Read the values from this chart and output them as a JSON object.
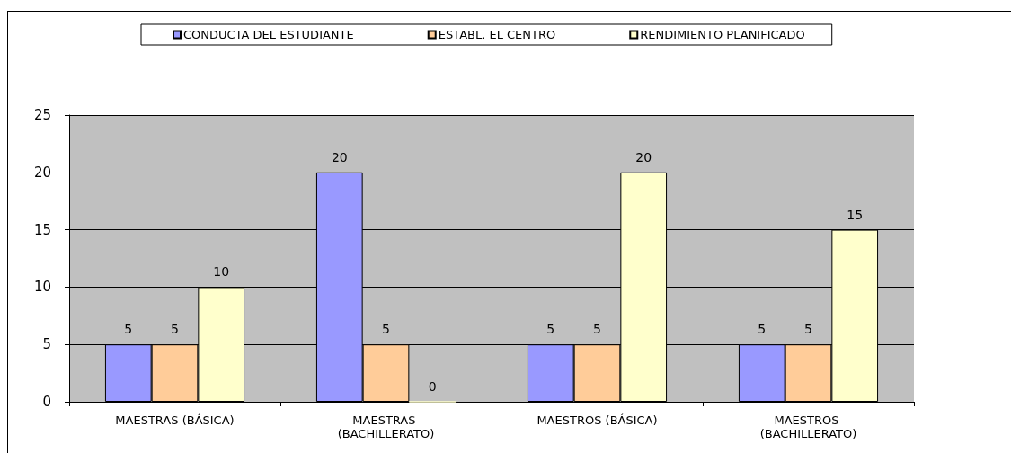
{
  "chart_data": {
    "type": "bar",
    "categories": [
      "MAESTRAS (BÁSICA)",
      "MAESTRAS (BACHILLERATO)",
      "MAESTROS (BÁSICA)",
      "MAESTROS (BACHILLERATO)"
    ],
    "series": [
      {
        "name": "CONDUCTA DEL ESTUDIANTE",
        "color": "#9999ff",
        "values": [
          5,
          20,
          5,
          5
        ]
      },
      {
        "name": "ESTABL. EL CENTRO",
        "color": "#ffcc99",
        "values": [
          5,
          5,
          5,
          5
        ]
      },
      {
        "name": "RENDIMIENTO PLANIFICADO",
        "color": "#ffffcc",
        "values": [
          10,
          0,
          20,
          15
        ]
      }
    ],
    "ylim": [
      0,
      25
    ],
    "yticks": [
      0,
      5,
      10,
      15,
      20,
      25
    ],
    "grid": "y",
    "legend": "top",
    "data_labels": true
  }
}
